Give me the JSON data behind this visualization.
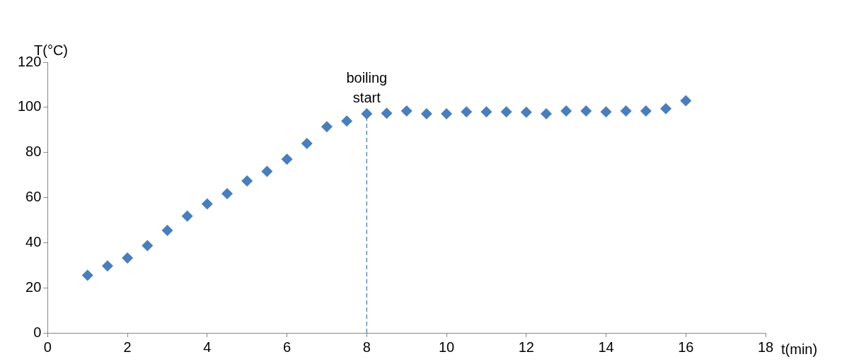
{
  "chart_data": {
    "type": "scatter",
    "xlabel": "t(min)",
    "ylabel": "T(°C)",
    "series": [
      {
        "color": "#4a7ebb",
        "x": [
          1,
          1.5,
          2,
          2.5,
          3,
          3.5,
          4,
          4.5,
          5,
          5.5,
          6,
          6.5,
          7,
          7.5,
          8,
          8.5,
          9,
          9.5,
          10,
          10.5,
          11,
          11.5,
          12,
          12.5,
          13,
          13.5,
          14,
          14.5,
          15,
          15.5,
          16
        ],
        "values": [
          25.5,
          29.7,
          33.2,
          38.7,
          45.4,
          51.8,
          57.2,
          61.7,
          67.4,
          71.6,
          77,
          84,
          91.4,
          93.9,
          97.1,
          97.4,
          98.4,
          97.1,
          97.1,
          98,
          98,
          98,
          97.8,
          97.1,
          98.4,
          98.4,
          98,
          98.4,
          98.4,
          99.4,
          102.9
        ]
      }
    ],
    "xlim": [
      0,
      18
    ],
    "xticks": [
      0,
      2,
      4,
      6,
      8,
      10,
      12,
      14,
      16,
      18
    ],
    "ylim": [
      0,
      120
    ],
    "yticks": [
      0,
      20,
      40,
      60,
      80,
      100,
      120
    ],
    "ref_lines": [
      {
        "axis": "x",
        "value": 8,
        "label": "boiling start",
        "color": "#4a7ebb",
        "line_style": "dashed"
      }
    ],
    "marker": "diamond",
    "grid": false,
    "legend": false
  }
}
